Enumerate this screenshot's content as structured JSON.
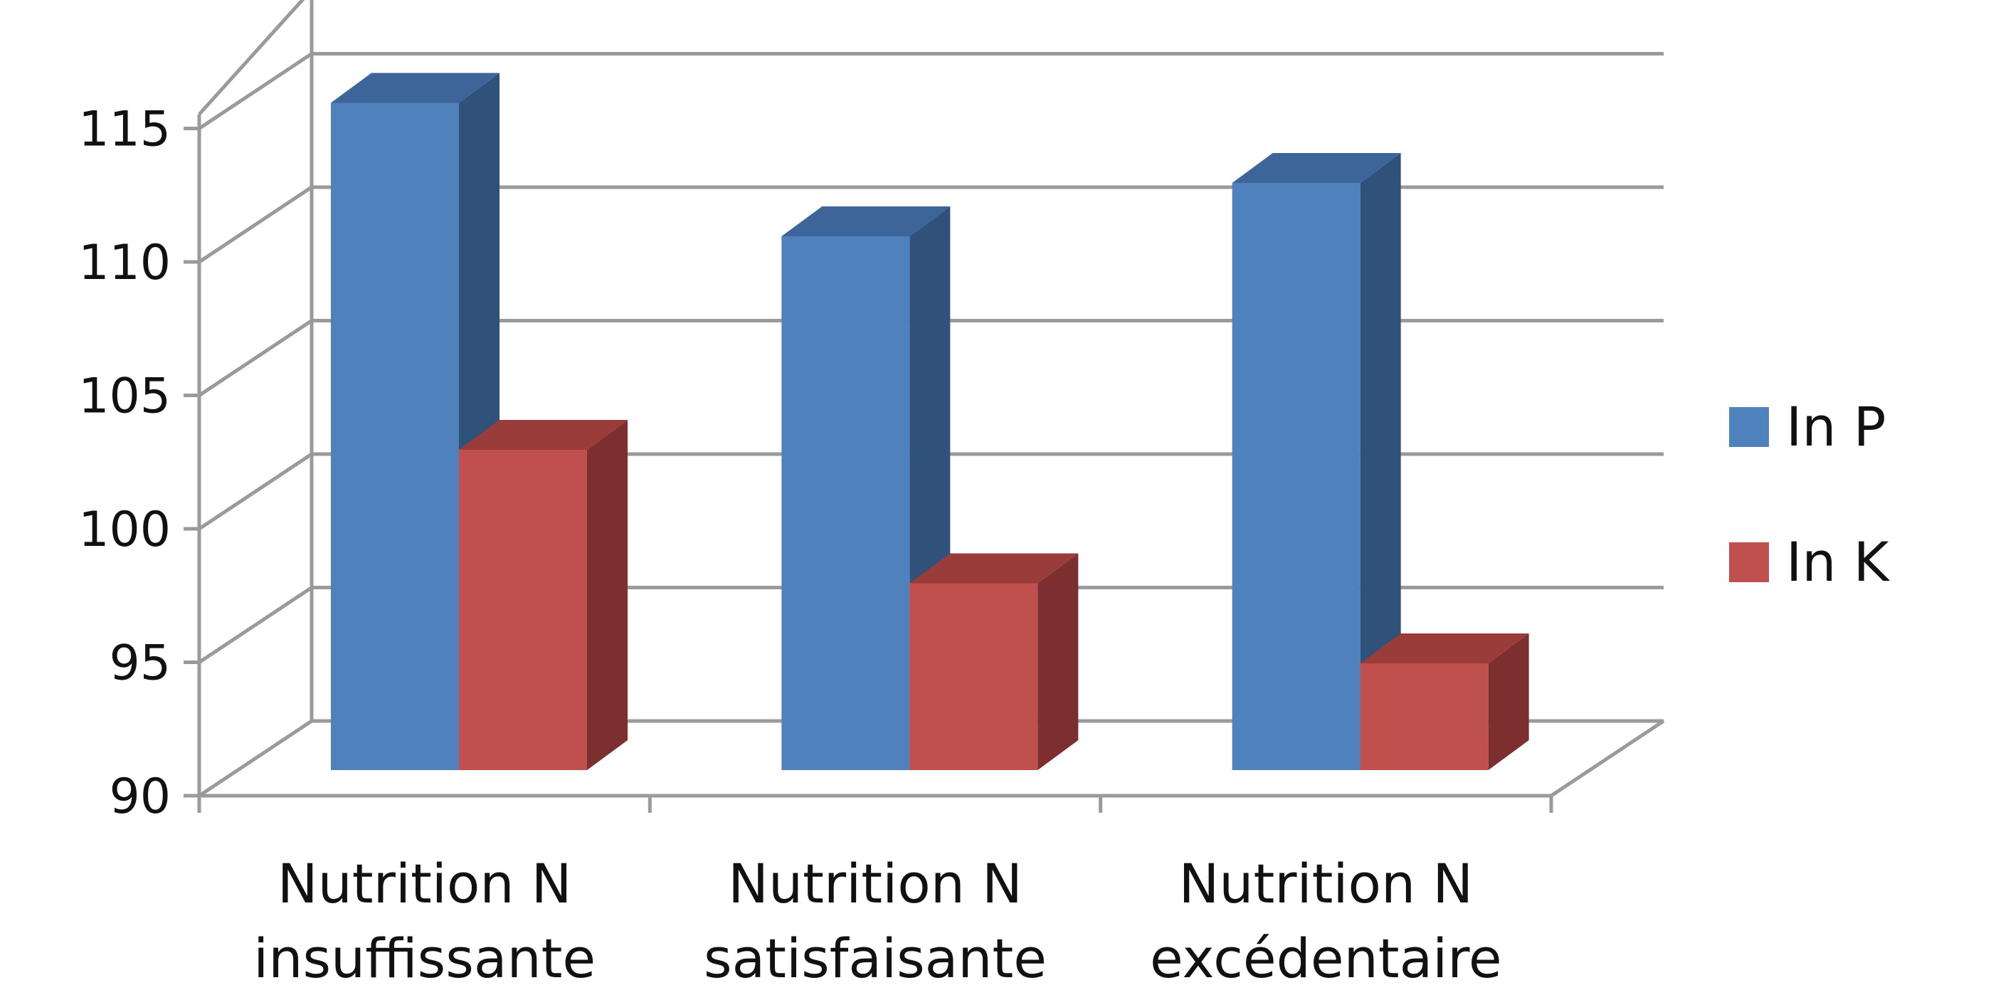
{
  "chart_data": {
    "type": "bar",
    "title": "",
    "xlabel": "",
    "ylabel": "",
    "ylim": [
      90,
      115
    ],
    "yticks": [
      90,
      95,
      100,
      105,
      110,
      115
    ],
    "categories": [
      [
        "Nutrition N",
        "insuffissante"
      ],
      [
        "Nutrition N",
        "satisfaisante"
      ],
      [
        "Nutrition N",
        "excédentaire"
      ]
    ],
    "series": [
      {
        "name": "In P",
        "values": [
          115,
          110,
          112
        ],
        "color": "#4f81bd",
        "side": "#30527a",
        "top": "#3d659a"
      },
      {
        "name": "In K",
        "values": [
          102,
          97,
          94
        ],
        "color": "#c0504d",
        "side": "#7d2f2f",
        "top": "#9a3c3a"
      }
    ],
    "grid": true,
    "legend": "right",
    "style": "3d"
  }
}
